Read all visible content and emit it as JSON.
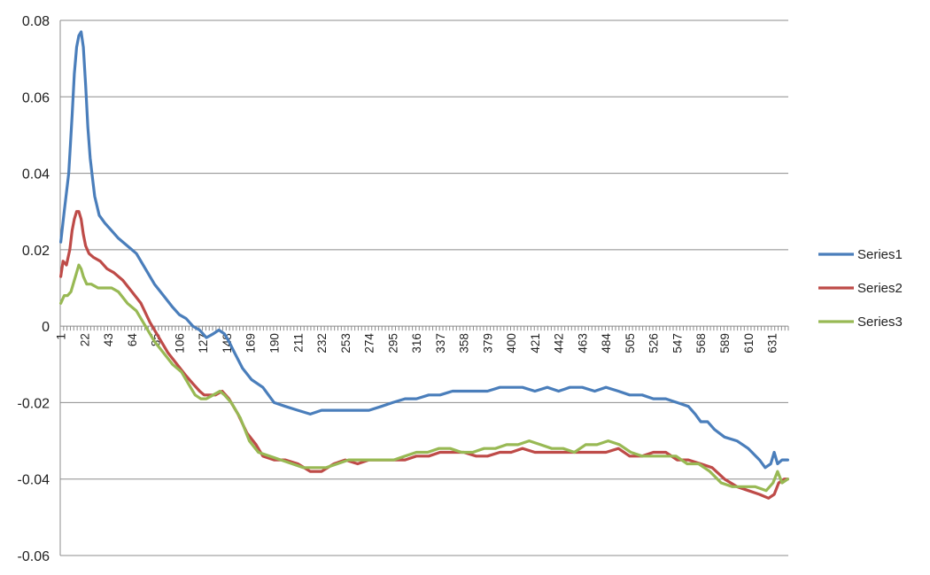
{
  "chart_data": {
    "type": "line",
    "title": "",
    "xlabel": "",
    "ylabel": "",
    "ylim": [
      -0.06,
      0.08
    ],
    "y_ticks": [
      "0.08",
      "0.06",
      "0.04",
      "0.02",
      "0",
      "-0.02",
      "-0.04",
      "-0.06"
    ],
    "y_tick_values": [
      0.08,
      0.06,
      0.04,
      0.02,
      0,
      -0.02,
      -0.04,
      -0.06
    ],
    "x_count": 645,
    "x_tick_labels": [
      "1",
      "22",
      "43",
      "64",
      "85",
      "106",
      "127",
      "148",
      "169",
      "190",
      "211",
      "232",
      "253",
      "274",
      "295",
      "316",
      "337",
      "358",
      "379",
      "400",
      "421",
      "442",
      "463",
      "484",
      "505",
      "526",
      "547",
      "568",
      "589",
      "610",
      "631"
    ],
    "grid": "horizontal",
    "legend_position": "right",
    "series": [
      {
        "name": "Series1",
        "color": "#4A7EBB",
        "points": [
          [
            1,
            0.022
          ],
          [
            4,
            0.03
          ],
          [
            8,
            0.04
          ],
          [
            11,
            0.055
          ],
          [
            13,
            0.066
          ],
          [
            15,
            0.073
          ],
          [
            17,
            0.076
          ],
          [
            19,
            0.077
          ],
          [
            21,
            0.073
          ],
          [
            23,
            0.063
          ],
          [
            25,
            0.052
          ],
          [
            27,
            0.044
          ],
          [
            29,
            0.039
          ],
          [
            31,
            0.034
          ],
          [
            35,
            0.029
          ],
          [
            40,
            0.027
          ],
          [
            46,
            0.025
          ],
          [
            52,
            0.023
          ],
          [
            60,
            0.021
          ],
          [
            68,
            0.019
          ],
          [
            76,
            0.015
          ],
          [
            84,
            0.011
          ],
          [
            92,
            0.008
          ],
          [
            100,
            0.005
          ],
          [
            106,
            0.003
          ],
          [
            112,
            0.002
          ],
          [
            118,
            0.0
          ],
          [
            124,
            -0.001
          ],
          [
            130,
            -0.003
          ],
          [
            136,
            -0.002
          ],
          [
            141,
            -0.001
          ],
          [
            146,
            -0.002
          ],
          [
            150,
            -0.004
          ],
          [
            155,
            -0.007
          ],
          [
            162,
            -0.011
          ],
          [
            170,
            -0.014
          ],
          [
            180,
            -0.016
          ],
          [
            190,
            -0.02
          ],
          [
            200,
            -0.021
          ],
          [
            211,
            -0.022
          ],
          [
            222,
            -0.023
          ],
          [
            232,
            -0.022
          ],
          [
            243,
            -0.022
          ],
          [
            253,
            -0.022
          ],
          [
            264,
            -0.022
          ],
          [
            274,
            -0.022
          ],
          [
            285,
            -0.021
          ],
          [
            295,
            -0.02
          ],
          [
            306,
            -0.019
          ],
          [
            316,
            -0.019
          ],
          [
            327,
            -0.018
          ],
          [
            337,
            -0.018
          ],
          [
            348,
            -0.017
          ],
          [
            358,
            -0.017
          ],
          [
            369,
            -0.017
          ],
          [
            379,
            -0.017
          ],
          [
            390,
            -0.016
          ],
          [
            400,
            -0.016
          ],
          [
            410,
            -0.016
          ],
          [
            421,
            -0.017
          ],
          [
            432,
            -0.016
          ],
          [
            442,
            -0.017
          ],
          [
            452,
            -0.016
          ],
          [
            463,
            -0.016
          ],
          [
            474,
            -0.017
          ],
          [
            484,
            -0.016
          ],
          [
            495,
            -0.017
          ],
          [
            505,
            -0.018
          ],
          [
            516,
            -0.018
          ],
          [
            526,
            -0.019
          ],
          [
            537,
            -0.019
          ],
          [
            547,
            -0.02
          ],
          [
            557,
            -0.021
          ],
          [
            563,
            -0.023
          ],
          [
            568,
            -0.025
          ],
          [
            574,
            -0.025
          ],
          [
            580,
            -0.027
          ],
          [
            589,
            -0.029
          ],
          [
            600,
            -0.03
          ],
          [
            610,
            -0.032
          ],
          [
            620,
            -0.035
          ],
          [
            625,
            -0.037
          ],
          [
            630,
            -0.036
          ],
          [
            633,
            -0.033
          ],
          [
            636,
            -0.036
          ],
          [
            640,
            -0.035
          ],
          [
            645,
            -0.035
          ]
        ]
      },
      {
        "name": "Series2",
        "color": "#BE4B48",
        "points": [
          [
            1,
            0.013
          ],
          [
            3,
            0.017
          ],
          [
            6,
            0.016
          ],
          [
            9,
            0.02
          ],
          [
            11,
            0.025
          ],
          [
            13,
            0.028
          ],
          [
            15,
            0.03
          ],
          [
            17,
            0.03
          ],
          [
            19,
            0.028
          ],
          [
            21,
            0.024
          ],
          [
            23,
            0.021
          ],
          [
            26,
            0.019
          ],
          [
            30,
            0.018
          ],
          [
            36,
            0.017
          ],
          [
            42,
            0.015
          ],
          [
            48,
            0.014
          ],
          [
            56,
            0.012
          ],
          [
            64,
            0.009
          ],
          [
            72,
            0.006
          ],
          [
            80,
            0.001
          ],
          [
            88,
            -0.003
          ],
          [
            96,
            -0.007
          ],
          [
            104,
            -0.01
          ],
          [
            112,
            -0.013
          ],
          [
            118,
            -0.015
          ],
          [
            124,
            -0.017
          ],
          [
            128,
            -0.018
          ],
          [
            132,
            -0.018
          ],
          [
            138,
            -0.018
          ],
          [
            144,
            -0.017
          ],
          [
            150,
            -0.019
          ],
          [
            158,
            -0.023
          ],
          [
            166,
            -0.028
          ],
          [
            174,
            -0.031
          ],
          [
            180,
            -0.034
          ],
          [
            190,
            -0.035
          ],
          [
            200,
            -0.035
          ],
          [
            211,
            -0.036
          ],
          [
            222,
            -0.038
          ],
          [
            232,
            -0.038
          ],
          [
            243,
            -0.036
          ],
          [
            253,
            -0.035
          ],
          [
            264,
            -0.036
          ],
          [
            274,
            -0.035
          ],
          [
            285,
            -0.035
          ],
          [
            295,
            -0.035
          ],
          [
            306,
            -0.035
          ],
          [
            316,
            -0.034
          ],
          [
            327,
            -0.034
          ],
          [
            337,
            -0.033
          ],
          [
            348,
            -0.033
          ],
          [
            358,
            -0.033
          ],
          [
            369,
            -0.034
          ],
          [
            379,
            -0.034
          ],
          [
            390,
            -0.033
          ],
          [
            400,
            -0.033
          ],
          [
            410,
            -0.032
          ],
          [
            421,
            -0.033
          ],
          [
            432,
            -0.033
          ],
          [
            442,
            -0.033
          ],
          [
            452,
            -0.033
          ],
          [
            463,
            -0.033
          ],
          [
            474,
            -0.033
          ],
          [
            484,
            -0.033
          ],
          [
            495,
            -0.032
          ],
          [
            505,
            -0.034
          ],
          [
            516,
            -0.034
          ],
          [
            526,
            -0.033
          ],
          [
            537,
            -0.033
          ],
          [
            547,
            -0.035
          ],
          [
            557,
            -0.035
          ],
          [
            568,
            -0.036
          ],
          [
            578,
            -0.037
          ],
          [
            589,
            -0.04
          ],
          [
            600,
            -0.042
          ],
          [
            610,
            -0.043
          ],
          [
            620,
            -0.044
          ],
          [
            628,
            -0.045
          ],
          [
            633,
            -0.044
          ],
          [
            637,
            -0.041
          ],
          [
            642,
            -0.04
          ],
          [
            645,
            -0.04
          ]
        ]
      },
      {
        "name": "Series3",
        "color": "#98B954",
        "points": [
          [
            1,
            0.006
          ],
          [
            4,
            0.008
          ],
          [
            7,
            0.008
          ],
          [
            10,
            0.009
          ],
          [
            13,
            0.012
          ],
          [
            15,
            0.014
          ],
          [
            17,
            0.016
          ],
          [
            19,
            0.015
          ],
          [
            21,
            0.013
          ],
          [
            24,
            0.011
          ],
          [
            28,
            0.011
          ],
          [
            34,
            0.01
          ],
          [
            40,
            0.01
          ],
          [
            46,
            0.01
          ],
          [
            52,
            0.009
          ],
          [
            60,
            0.006
          ],
          [
            68,
            0.004
          ],
          [
            76,
            0.0
          ],
          [
            84,
            -0.004
          ],
          [
            92,
            -0.007
          ],
          [
            100,
            -0.01
          ],
          [
            108,
            -0.012
          ],
          [
            114,
            -0.015
          ],
          [
            120,
            -0.018
          ],
          [
            125,
            -0.019
          ],
          [
            130,
            -0.019
          ],
          [
            136,
            -0.018
          ],
          [
            142,
            -0.017
          ],
          [
            146,
            -0.018
          ],
          [
            152,
            -0.02
          ],
          [
            160,
            -0.024
          ],
          [
            168,
            -0.03
          ],
          [
            176,
            -0.033
          ],
          [
            186,
            -0.034
          ],
          [
            196,
            -0.035
          ],
          [
            206,
            -0.036
          ],
          [
            216,
            -0.037
          ],
          [
            226,
            -0.037
          ],
          [
            236,
            -0.037
          ],
          [
            246,
            -0.036
          ],
          [
            256,
            -0.035
          ],
          [
            266,
            -0.035
          ],
          [
            276,
            -0.035
          ],
          [
            286,
            -0.035
          ],
          [
            296,
            -0.035
          ],
          [
            306,
            -0.034
          ],
          [
            316,
            -0.033
          ],
          [
            326,
            -0.033
          ],
          [
            336,
            -0.032
          ],
          [
            346,
            -0.032
          ],
          [
            356,
            -0.033
          ],
          [
            366,
            -0.033
          ],
          [
            376,
            -0.032
          ],
          [
            386,
            -0.032
          ],
          [
            396,
            -0.031
          ],
          [
            406,
            -0.031
          ],
          [
            416,
            -0.03
          ],
          [
            426,
            -0.031
          ],
          [
            436,
            -0.032
          ],
          [
            446,
            -0.032
          ],
          [
            456,
            -0.033
          ],
          [
            466,
            -0.031
          ],
          [
            476,
            -0.031
          ],
          [
            486,
            -0.03
          ],
          [
            496,
            -0.031
          ],
          [
            506,
            -0.033
          ],
          [
            516,
            -0.034
          ],
          [
            526,
            -0.034
          ],
          [
            536,
            -0.034
          ],
          [
            546,
            -0.034
          ],
          [
            556,
            -0.036
          ],
          [
            566,
            -0.036
          ],
          [
            576,
            -0.038
          ],
          [
            586,
            -0.041
          ],
          [
            596,
            -0.042
          ],
          [
            606,
            -0.042
          ],
          [
            616,
            -0.042
          ],
          [
            626,
            -0.043
          ],
          [
            632,
            -0.041
          ],
          [
            636,
            -0.038
          ],
          [
            640,
            -0.041
          ],
          [
            645,
            -0.04
          ]
        ]
      }
    ]
  }
}
